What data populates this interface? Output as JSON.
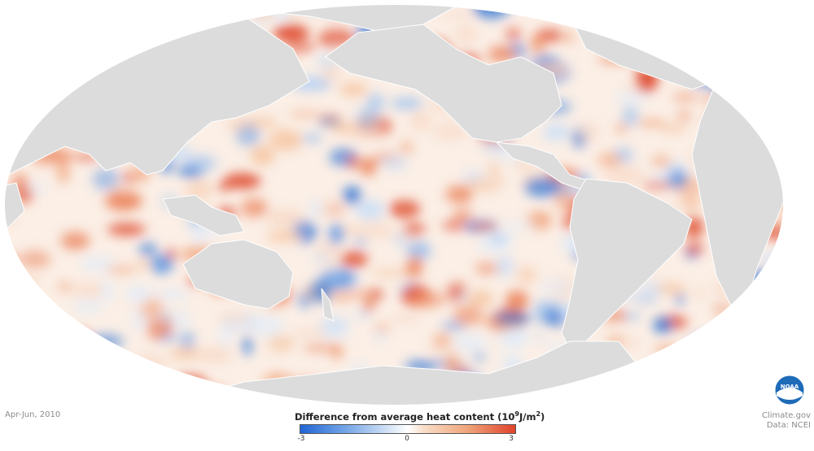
{
  "date_label": "Apr-Jun, 2010",
  "legend": {
    "title": "Difference from average heat content",
    "unit_base": "(10",
    "unit_exp": "9",
    "unit_mid": "J/m",
    "unit_exp2": "2",
    "unit_end": ")",
    "min_label": "-3",
    "mid_label": "0",
    "max_label": "3",
    "colors": {
      "negative": "#2166d6",
      "neutral": "#ffffff",
      "positive": "#e0422a"
    }
  },
  "credits": {
    "site": "Climate.gov",
    "source": "Data: NCEI"
  },
  "logo": {
    "icon": "noaa-logo",
    "text": "NOAA",
    "colors": {
      "sky": "#1e6bb8",
      "bird": "#ffffff"
    }
  },
  "map": {
    "projection": "mollweide",
    "land_color": "#dcdcdc",
    "ocean_border": "#ffffff"
  }
}
